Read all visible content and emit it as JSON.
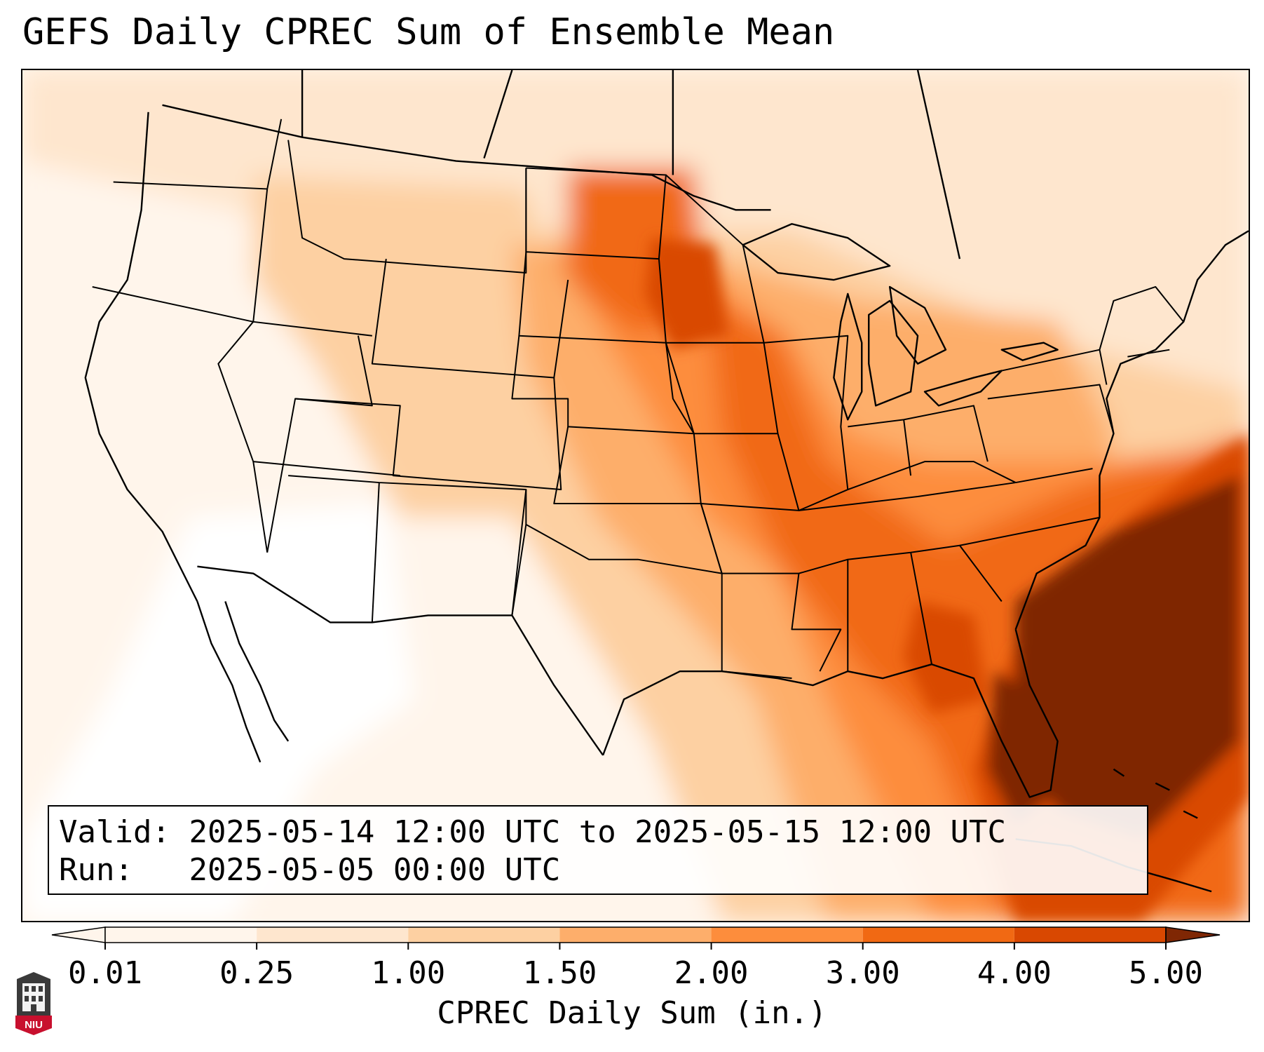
{
  "title": "GEFS Daily CPREC Sum of Ensemble Mean",
  "info": {
    "valid_label": "Valid:",
    "valid_value": "2025-05-14 12:00 UTC to 2025-05-15 12:00 UTC",
    "run_label": "Run:",
    "run_value": "2025-05-05 00:00 UTC"
  },
  "colorbar": {
    "label": "CPREC Daily Sum (in.)",
    "ticks": [
      "0.01",
      "0.25",
      "1.00",
      "1.50",
      "2.00",
      "3.00",
      "4.00",
      "5.00"
    ],
    "under_color": "#fff5eb",
    "over_color": "#7f2704",
    "bin_colors": [
      "#fff5eb",
      "#fee6ce",
      "#fdd0a2",
      "#fdae6b",
      "#fd8d3c",
      "#f16913",
      "#d94801"
    ]
  },
  "map": {
    "land_outline_color": "#000000",
    "field_colors": {
      "none": "#ffffff",
      "trace": "#fff5eb",
      "light": "#fee6ce",
      "low": "#fdd0a2",
      "moderate": "#fdae6b",
      "high": "#fd8d3c",
      "very_high": "#f16913",
      "extreme": "#d94801",
      "max": "#7f2704"
    }
  },
  "logo": {
    "text": "NIU",
    "icon": "niu-tower-icon",
    "color": "#c8102e"
  }
}
